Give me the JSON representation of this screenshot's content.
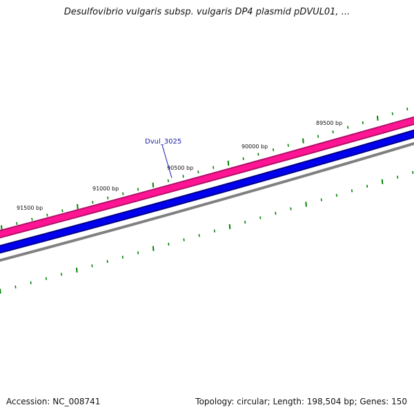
{
  "title": "Desulfovibrio vulgaris subsp. vulgaris DP4 plasmid pDVUL01, ...",
  "footer": {
    "accession": "Accession: NC_008741",
    "summary": "Topology: circular; Length: 198,504 bp; Genes: 150"
  },
  "colors": {
    "forward_track": "#ff1493",
    "forward_track_edge": "#b0106a",
    "reverse_track": "#0000ee",
    "reverse_track_edge": "#000088",
    "backbone": "#808080",
    "tick": "#008000",
    "gene_label": "#1a1aa6"
  },
  "scale_labels": [
    "89500 bp",
    "90000 bp",
    "90500 bp",
    "91000 bp",
    "91500 bp"
  ],
  "gene_label": "Dvul_3025"
}
